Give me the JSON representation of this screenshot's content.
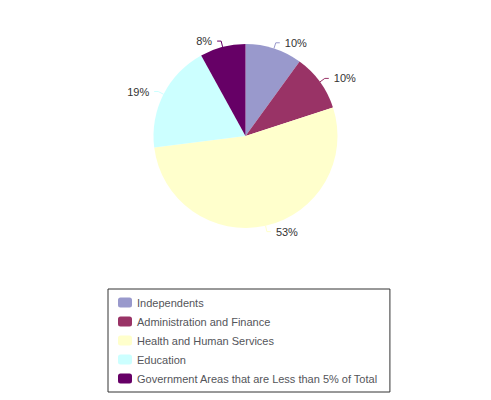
{
  "chart_data": {
    "type": "pie",
    "categories": [
      "Independents",
      "Administration and Finance",
      "Health and Human Services",
      "Education",
      "Government Areas that are Less than 5% of Total"
    ],
    "values": [
      10,
      10,
      53,
      19,
      8
    ],
    "value_labels": [
      "10%",
      "10%",
      "53%",
      "19%",
      "8%"
    ],
    "colors": [
      "#9999cc",
      "#993366",
      "#ffffcc",
      "#ccffff",
      "#660066"
    ],
    "data_labels": true,
    "legend": "bottom"
  }
}
